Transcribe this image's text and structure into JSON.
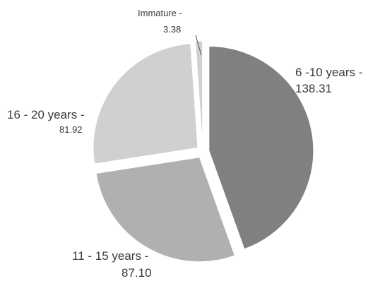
{
  "chart_data": {
    "type": "pie",
    "title": "",
    "slices": [
      {
        "label": "6 -10 years -",
        "value_label": "138.31",
        "value": 138.31,
        "color": "#808082"
      },
      {
        "label": "11 - 15 years -",
        "value_label": "87.10",
        "value": 87.1,
        "color": "#b0b0b2"
      },
      {
        "label": "16 - 20 years -",
        "value_label": "81.92",
        "value": 81.92,
        "color": "#d0d0d2"
      },
      {
        "label": "Immature -",
        "value_label": "3.38",
        "value": 3.38,
        "color": "#d0d0d2"
      }
    ],
    "legend": "none",
    "labels": "outside"
  }
}
